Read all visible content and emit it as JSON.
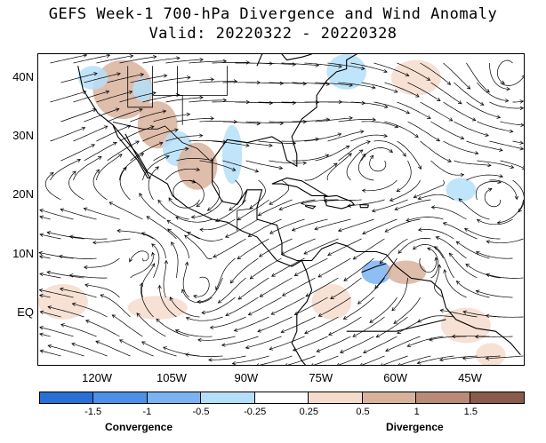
{
  "title": {
    "line1": "GEFS Week-1 700-hPa Divergence and Wind Anomaly",
    "line2": "Valid: 20220322 - 20220328"
  },
  "map": {
    "lat_ticks": [
      "40N",
      "30N",
      "20N",
      "10N",
      "EQ"
    ],
    "lon_ticks": [
      "120W",
      "105W",
      "90W",
      "75W",
      "60W",
      "45W"
    ],
    "lon_range": [
      -132,
      -34
    ],
    "lat_range": [
      -9,
      44
    ],
    "streamline_color": "#000000",
    "coastline_color": "#000000"
  },
  "legend": {
    "colors": [
      "#2a6fd6",
      "#4c90e8",
      "#7ab3f2",
      "#b5dff8",
      "#ffffff",
      "#f4dccd",
      "#d9b29c",
      "#b88a77",
      "#8a5a4c"
    ],
    "labels": [
      "-1.5",
      "-1",
      "-0.5",
      "-0.25",
      "0.25",
      "0.5",
      "1",
      "1.5"
    ],
    "left_caption": "Convergence",
    "right_caption": "Divergence"
  },
  "chart_data": {
    "type": "heatmap",
    "variable": "700-hPa Divergence and Wind Anomaly",
    "valid_period": [
      "20220322",
      "20220328"
    ],
    "levels": [
      -1.5,
      -1,
      -0.5,
      -0.25,
      0.25,
      0.5,
      1,
      1.5
    ],
    "anomaly_patches": [
      {
        "lon": -115,
        "lat": 38,
        "value": 0.8,
        "rx": 6,
        "ry": 5
      },
      {
        "lon": -108,
        "lat": 32,
        "value": 0.6,
        "rx": 4,
        "ry": 4
      },
      {
        "lon": -121,
        "lat": 40,
        "value": -0.4,
        "rx": 3,
        "ry": 2
      },
      {
        "lon": -111,
        "lat": 38,
        "value": -0.5,
        "rx": 2,
        "ry": 2
      },
      {
        "lon": -93,
        "lat": 27,
        "value": -0.5,
        "rx": 2,
        "ry": 5
      },
      {
        "lon": -104,
        "lat": 28,
        "value": -0.4,
        "rx": 3,
        "ry": 3
      },
      {
        "lon": -100,
        "lat": 25,
        "value": 0.5,
        "rx": 4,
        "ry": 4
      },
      {
        "lon": -70,
        "lat": 41,
        "value": -0.4,
        "rx": 4,
        "ry": 3
      },
      {
        "lon": -56,
        "lat": 40,
        "value": 0.4,
        "rx": 5,
        "ry": 3
      },
      {
        "lon": -64,
        "lat": 7,
        "value": -1.0,
        "rx": 3,
        "ry": 2
      },
      {
        "lon": -58,
        "lat": 7,
        "value": 0.6,
        "rx": 4,
        "ry": 2
      },
      {
        "lon": -127,
        "lat": 2,
        "value": 0.4,
        "rx": 5,
        "ry": 3
      },
      {
        "lon": -108,
        "lat": 1,
        "value": 0.3,
        "rx": 6,
        "ry": 2
      },
      {
        "lon": -73,
        "lat": 2,
        "value": 0.3,
        "rx": 4,
        "ry": 3
      },
      {
        "lon": -46,
        "lat": -2,
        "value": 0.3,
        "rx": 5,
        "ry": 3
      },
      {
        "lon": -41,
        "lat": -7,
        "value": 0.4,
        "rx": 3,
        "ry": 2
      },
      {
        "lon": -47,
        "lat": 21,
        "value": -0.3,
        "rx": 3,
        "ry": 2
      }
    ],
    "circulation_centers": [
      {
        "lon": -63,
        "lat": 26,
        "sense": "anticyclonic"
      },
      {
        "lon": -38,
        "lat": 40,
        "sense": "cyclonic"
      },
      {
        "lon": -40,
        "lat": 19,
        "sense": "anticyclonic"
      },
      {
        "lon": -110,
        "lat": 10,
        "sense": "cyclonic"
      },
      {
        "lon": -54,
        "lat": 10,
        "sense": "cyclonic"
      },
      {
        "lon": -103,
        "lat": 20,
        "sense": "anticyclonic"
      },
      {
        "lon": -100,
        "lat": 4,
        "sense": "anticyclonic"
      }
    ]
  }
}
